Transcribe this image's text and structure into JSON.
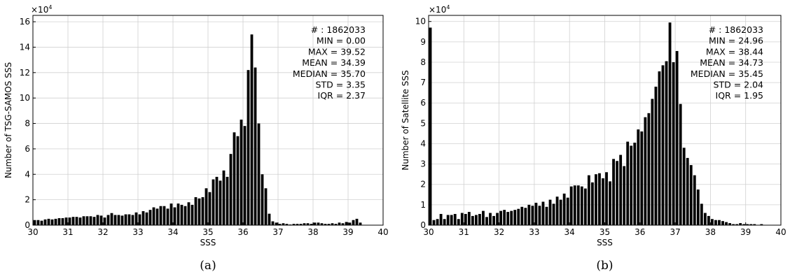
{
  "chart_data": [
    {
      "type": "bar",
      "caption": "(a)",
      "xlabel": "SSS",
      "ylabel": "Number of TSG-SAMOS SSS",
      "y_multiplier": "×10",
      "y_multiplier_exp": "4",
      "xlim": [
        30,
        40
      ],
      "ylim": [
        0,
        16.5
      ],
      "x_ticks": [
        30,
        31,
        32,
        33,
        34,
        35,
        36,
        37,
        38,
        39,
        40
      ],
      "y_ticks": [
        0,
        2,
        4,
        6,
        8,
        10,
        12,
        14,
        16
      ],
      "bin_start": 30.0,
      "bin_width": 0.1,
      "values": [
        0.4,
        0.4,
        0.35,
        0.45,
        0.5,
        0.45,
        0.5,
        0.55,
        0.55,
        0.6,
        0.6,
        0.65,
        0.65,
        0.6,
        0.7,
        0.7,
        0.7,
        0.65,
        0.8,
        0.75,
        0.6,
        0.8,
        0.95,
        0.8,
        0.8,
        0.75,
        0.85,
        0.85,
        0.8,
        1.0,
        0.85,
        1.1,
        1.0,
        1.2,
        1.4,
        1.3,
        1.5,
        1.5,
        1.3,
        1.7,
        1.4,
        1.7,
        1.6,
        1.5,
        1.8,
        1.6,
        2.2,
        2.1,
        2.2,
        2.9,
        2.6,
        3.6,
        3.8,
        3.5,
        4.3,
        3.8,
        5.6,
        7.3,
        7.0,
        8.3,
        7.8,
        12.2,
        15.0,
        12.4,
        8.0,
        4.0,
        2.9,
        0.9,
        0.3,
        0.2,
        0.1,
        0.15,
        0.1,
        0.05,
        0.1,
        0.1,
        0.1,
        0.15,
        0.15,
        0.1,
        0.2,
        0.2,
        0.15,
        0.1,
        0.1,
        0.15,
        0.1,
        0.2,
        0.15,
        0.25,
        0.2,
        0.4,
        0.5,
        0.2,
        0,
        0,
        0,
        0,
        0,
        0
      ],
      "stats": [
        "# : 1862033",
        "MIN = 0.00",
        "MAX =  39.52",
        "MEAN = 34.39",
        "MEDIAN = 35.70",
        "STD = 3.35",
        "IQR = 2.37"
      ]
    },
    {
      "type": "bar",
      "caption": "(b)",
      "xlabel": "SSS",
      "ylabel": "Number of Satellite SSS",
      "y_multiplier": "×10",
      "y_multiplier_exp": "4",
      "xlim": [
        30,
        40
      ],
      "ylim": [
        0,
        10.3
      ],
      "x_ticks": [
        30,
        31,
        32,
        33,
        34,
        35,
        36,
        37,
        38,
        39,
        40
      ],
      "y_ticks": [
        0,
        1,
        2,
        3,
        4,
        5,
        6,
        7,
        8,
        9,
        10
      ],
      "bin_start": 30.0,
      "bin_width": 0.1,
      "values": [
        9.7,
        0.25,
        0.3,
        0.55,
        0.3,
        0.5,
        0.5,
        0.55,
        0.3,
        0.6,
        0.55,
        0.65,
        0.45,
        0.5,
        0.55,
        0.7,
        0.4,
        0.6,
        0.45,
        0.6,
        0.7,
        0.75,
        0.65,
        0.7,
        0.75,
        0.8,
        0.9,
        0.85,
        1.0,
        0.95,
        1.1,
        0.95,
        1.15,
        0.9,
        1.25,
        1.05,
        1.4,
        1.25,
        1.55,
        1.35,
        1.9,
        1.95,
        1.95,
        1.9,
        1.8,
        2.45,
        2.1,
        2.5,
        2.55,
        2.3,
        2.6,
        2.15,
        3.25,
        3.15,
        3.45,
        2.9,
        4.1,
        3.9,
        4.05,
        4.7,
        4.6,
        5.3,
        5.5,
        6.2,
        6.8,
        7.55,
        7.85,
        8.05,
        9.95,
        8.0,
        8.55,
        5.95,
        3.8,
        3.3,
        2.95,
        2.45,
        1.75,
        1.05,
        0.6,
        0.45,
        0.3,
        0.25,
        0.25,
        0.2,
        0.15,
        0.1,
        0.05,
        0.05,
        0.1,
        0.05,
        0.05,
        0.05,
        0.05,
        0.0,
        0.05,
        0,
        0,
        0,
        0,
        0
      ],
      "stats": [
        "# : 1862033",
        "MIN = 24.96",
        "MAX =  38.44",
        "MEAN = 34.73",
        "MEDIAN = 35.45",
        "STD = 2.04",
        "IQR = 1.95"
      ]
    }
  ]
}
